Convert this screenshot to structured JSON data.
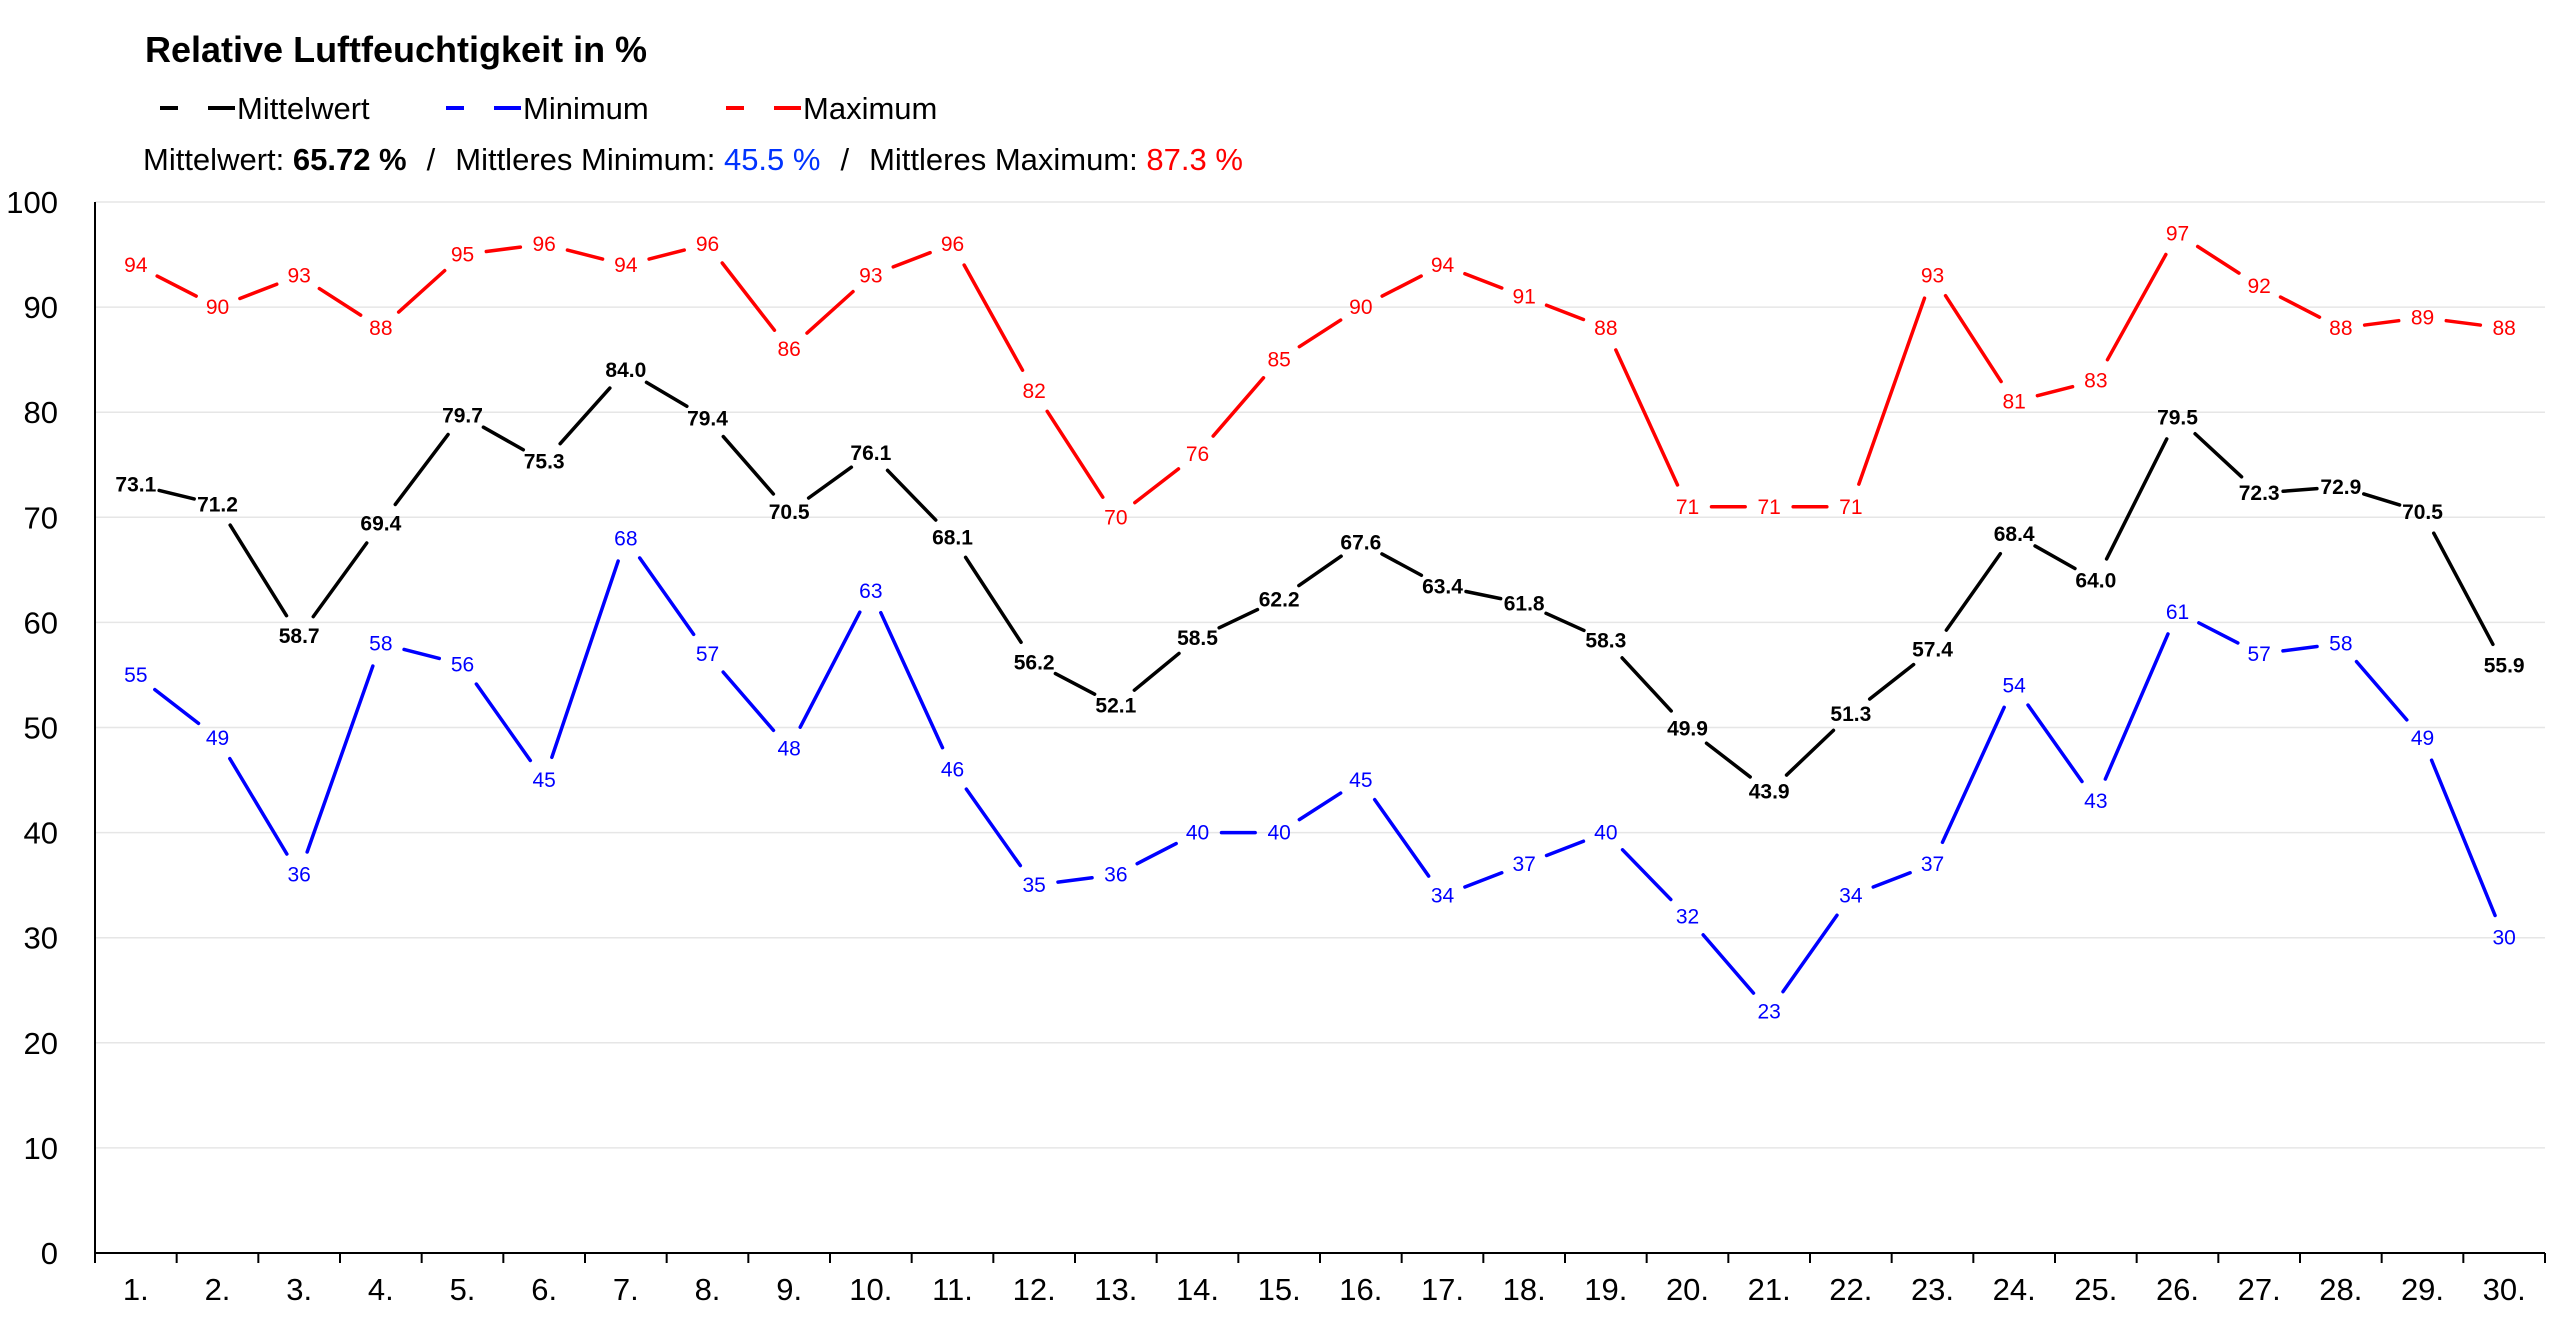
{
  "chart_data": {
    "type": "line",
    "title": "Relative Luftfeuchtigkeit in %",
    "legend": [
      {
        "name": "Mittelwert",
        "color": "#000000"
      },
      {
        "name": "Minimum",
        "color": "#0000ff"
      },
      {
        "name": "Maximum",
        "color": "#ff0000"
      }
    ],
    "summary": {
      "mean_label": "Mittelwert: ",
      "mean_value": "65.72 %",
      "sep1": "/",
      "min_label": "Mittleres Minimum: ",
      "min_value": "45.5 %",
      "sep2": "/",
      "max_label": "Mittleres Maximum: ",
      "max_value": "87.3 %"
    },
    "categories": [
      "1.",
      "2.",
      "3.",
      "4.",
      "5.",
      "6.",
      "7.",
      "8.",
      "9.",
      "10.",
      "11.",
      "12.",
      "13.",
      "14.",
      "15.",
      "16.",
      "17.",
      "18.",
      "19.",
      "20.",
      "21.",
      "22.",
      "23.",
      "24.",
      "25.",
      "26.",
      "27.",
      "28.",
      "29.",
      "30."
    ],
    "series": [
      {
        "name": "Maximum",
        "color": "#ff0000",
        "values": [
          94,
          90,
          93,
          88,
          95,
          96,
          94,
          96,
          86,
          93,
          96,
          82,
          70,
          76,
          85,
          90,
          94,
          91,
          88,
          71,
          71,
          71,
          93,
          81,
          83,
          97,
          92,
          88,
          89,
          88
        ],
        "labels": [
          "94",
          "90",
          "93",
          "88",
          "95",
          "96",
          "94",
          "96",
          "86",
          "93",
          "96",
          "82",
          "70",
          "76",
          "85",
          "90",
          "94",
          "91",
          "88",
          "71",
          "71",
          "71",
          "93",
          "81",
          "83",
          "97",
          "92",
          "88",
          "89",
          "88"
        ]
      },
      {
        "name": "Mittelwert",
        "color": "#000000",
        "values": [
          73.1,
          71.2,
          58.7,
          69.4,
          79.7,
          75.3,
          84.0,
          79.4,
          70.5,
          76.1,
          68.1,
          56.2,
          52.1,
          58.5,
          62.2,
          67.6,
          63.4,
          61.8,
          58.3,
          49.9,
          43.9,
          51.3,
          57.4,
          68.4,
          64.0,
          79.5,
          72.3,
          72.9,
          70.5,
          55.9
        ],
        "labels": [
          "73.1",
          "71.2",
          "58.7",
          "69.4",
          "79.7",
          "75.3",
          "84.0",
          "79.4",
          "70.5",
          "76.1",
          "68.1",
          "56.2",
          "52.1",
          "58.5",
          "62.2",
          "67.6",
          "63.4",
          "61.8",
          "58.3",
          "49.9",
          "43.9",
          "51.3",
          "57.4",
          "68.4",
          "64.0",
          "79.5",
          "72.3",
          "72.9",
          "70.5",
          "55.9"
        ]
      },
      {
        "name": "Minimum",
        "color": "#0000ff",
        "values": [
          55,
          49,
          36,
          58,
          56,
          45,
          68,
          57,
          48,
          63,
          46,
          35,
          36,
          40,
          40,
          45,
          34,
          37,
          40,
          32,
          23,
          34,
          37,
          54,
          43,
          61,
          57,
          58,
          49,
          30
        ],
        "labels": [
          "55",
          "49",
          "36",
          "58",
          "56",
          "45",
          "68",
          "57",
          "48",
          "63",
          "46",
          "35",
          "36",
          "40",
          "40",
          "45",
          "34",
          "37",
          "40",
          "32",
          "23",
          "34",
          "37",
          "54",
          "43",
          "61",
          "57",
          "58",
          "49",
          "30"
        ]
      }
    ],
    "ylim": [
      0,
      100
    ],
    "yticks": [
      0,
      10,
      20,
      30,
      40,
      50,
      60,
      70,
      80,
      90,
      100
    ],
    "grid": true,
    "legend_position": "top-left"
  }
}
